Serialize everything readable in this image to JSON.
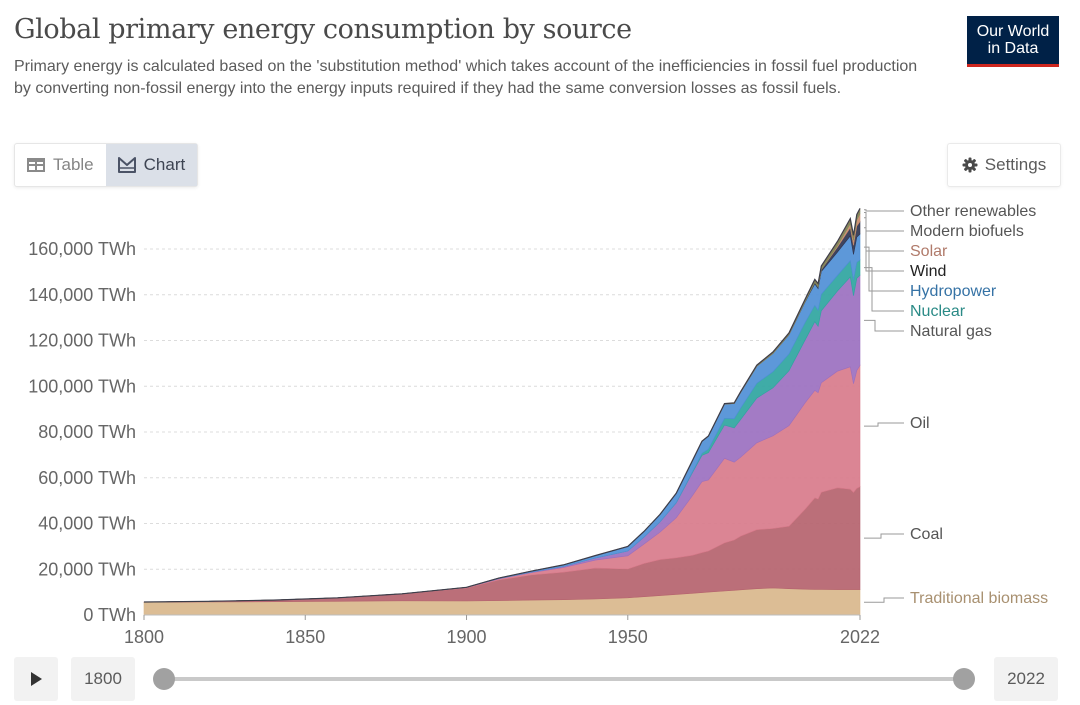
{
  "header": {
    "title": "Global primary energy consumption by source",
    "subtitle": "Primary energy is calculated based on the 'substitution method' which takes account of the inefficiencies in fossil fuel production by converting non-fossil energy into the energy inputs required if they had the same conversion losses as fossil fuels.",
    "logo_line1": "Our World",
    "logo_line2": "in Data"
  },
  "tabs": [
    {
      "label": "Table",
      "icon": "table-icon",
      "active": false
    },
    {
      "label": "Chart",
      "icon": "chart-icon",
      "active": true
    }
  ],
  "settings": {
    "label": "Settings",
    "icon": "gear-icon"
  },
  "timeline": {
    "play_icon": "play-icon",
    "start_label": "1800",
    "end_label": "2022",
    "range_start": 1800,
    "range_end": 2022
  },
  "chart_data": {
    "type": "area",
    "stacked": true,
    "title": "Global primary energy consumption by source",
    "xlabel": "",
    "ylabel": "",
    "unit": "TWh",
    "xlim": [
      1800,
      2022
    ],
    "ylim": [
      0,
      160000
    ],
    "x_ticks": [
      "1800",
      "1850",
      "1900",
      "1950",
      "2022"
    ],
    "y_ticks": [
      "0 TWh",
      "20,000 TWh",
      "40,000 TWh",
      "60,000 TWh",
      "80,000 TWh",
      "100,000 TWh",
      "120,000 TWh",
      "140,000 TWh",
      "160,000 TWh"
    ],
    "y_tick_values": [
      0,
      20000,
      40000,
      60000,
      80000,
      100000,
      120000,
      140000,
      160000
    ],
    "grid": "horizontal-dashed",
    "legend": "right-inline",
    "x": [
      1800,
      1820,
      1840,
      1860,
      1880,
      1900,
      1910,
      1920,
      1930,
      1940,
      1950,
      1955,
      1960,
      1965,
      1970,
      1973,
      1975,
      1980,
      1983,
      1985,
      1990,
      1995,
      2000,
      2005,
      2008,
      2009,
      2010,
      2015,
      2019,
      2020,
      2021,
      2022
    ],
    "series": [
      {
        "name": "Traditional biomass",
        "color": "#d9b78c",
        "label_color": "#a89070",
        "values": [
          5600,
          5700,
          5800,
          6000,
          6200,
          6100,
          6300,
          6500,
          6700,
          7000,
          7500,
          8000,
          8500,
          9000,
          9500,
          9800,
          10000,
          10500,
          10800,
          11000,
          11500,
          11800,
          11500,
          11300,
          11200,
          11200,
          11200,
          11100,
          11100,
          11100,
          11100,
          11100
        ]
      },
      {
        "name": "Coal",
        "color": "#b5636e",
        "label_color": "#555555",
        "values": [
          100,
          300,
          700,
          1500,
          3000,
          5700,
          9000,
          11000,
          12000,
          13500,
          12600,
          14500,
          15700,
          16000,
          16600,
          17500,
          18000,
          21000,
          22000,
          23500,
          25800,
          26000,
          27300,
          35000,
          40000,
          39500,
          42500,
          44500,
          43900,
          42500,
          44300,
          45000
        ]
      },
      {
        "name": "Oil",
        "color": "#d87b8b",
        "label_color": "#555555",
        "values": [
          0,
          0,
          0,
          0,
          50,
          200,
          500,
          1000,
          2000,
          3500,
          5800,
          8500,
          12000,
          17500,
          26000,
          31000,
          31000,
          37000,
          34000,
          34500,
          38000,
          40500,
          44000,
          46500,
          47000,
          46500,
          47800,
          51000,
          53500,
          47500,
          51500,
          53000
        ]
      },
      {
        "name": "Natural gas",
        "color": "#9b70c0",
        "label_color": "#555555",
        "values": [
          0,
          0,
          0,
          0,
          0,
          70,
          150,
          250,
          500,
          900,
          2100,
          3000,
          4500,
          6500,
          10000,
          11500,
          12000,
          14500,
          15000,
          16500,
          19500,
          21000,
          24000,
          27500,
          30000,
          29000,
          31500,
          35000,
          39300,
          38500,
          40300,
          39400
        ]
      },
      {
        "name": "Nuclear",
        "color": "#2fa5a0",
        "label_color": "#2a8a86",
        "values": [
          0,
          0,
          0,
          0,
          0,
          0,
          0,
          0,
          0,
          0,
          0,
          0,
          30,
          150,
          400,
          900,
          1500,
          3000,
          4000,
          5000,
          6500,
          7000,
          7300,
          7600,
          7200,
          7000,
          7200,
          6800,
          7100,
          6800,
          7000,
          6700
        ]
      },
      {
        "name": "Hydropower",
        "color": "#4f8fd6",
        "label_color": "#3572a5",
        "values": [
          0,
          0,
          0,
          0,
          0,
          40,
          200,
          400,
          700,
          1100,
          2000,
          2500,
          3200,
          4000,
          4800,
          5200,
          5600,
          6200,
          6600,
          6800,
          7400,
          8000,
          8400,
          9000,
          9400,
          9500,
          9900,
          10200,
          10800,
          11200,
          11000,
          11300
        ]
      },
      {
        "name": "Wind",
        "color": "#2f3450",
        "label_color": "#222222",
        "values": [
          0,
          0,
          0,
          0,
          0,
          0,
          0,
          0,
          0,
          0,
          0,
          0,
          0,
          0,
          0,
          0,
          0,
          0,
          0,
          0,
          10,
          20,
          80,
          250,
          550,
          680,
          850,
          2200,
          3600,
          4000,
          4800,
          5500
        ]
      },
      {
        "name": "Solar",
        "color": "#c98b6b",
        "label_color": "#b07a6a",
        "values": [
          0,
          0,
          0,
          0,
          0,
          0,
          0,
          0,
          0,
          0,
          0,
          0,
          0,
          0,
          0,
          0,
          0,
          0,
          0,
          0,
          0,
          0,
          0,
          10,
          30,
          50,
          90,
          650,
          1800,
          2200,
          2800,
          3400
        ]
      },
      {
        "name": "Modern biofuels",
        "color": "#7b8c5a",
        "label_color": "#555555",
        "values": [
          0,
          0,
          0,
          0,
          0,
          0,
          0,
          0,
          0,
          0,
          0,
          0,
          0,
          0,
          0,
          0,
          0,
          0,
          50,
          80,
          130,
          170,
          180,
          320,
          600,
          650,
          720,
          880,
          1100,
          1050,
          1100,
          1150
        ]
      },
      {
        "name": "Other renewables",
        "color": "#8a7d56",
        "label_color": "#555555",
        "values": [
          0,
          0,
          0,
          0,
          0,
          0,
          0,
          0,
          0,
          0,
          10,
          20,
          40,
          60,
          100,
          120,
          140,
          200,
          260,
          300,
          400,
          480,
          550,
          650,
          750,
          780,
          820,
          950,
          1100,
          1130,
          1180,
          1200
        ]
      }
    ]
  }
}
